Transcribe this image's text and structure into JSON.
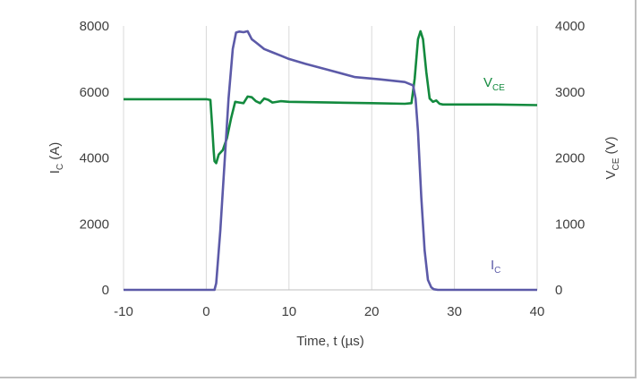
{
  "chart_data": {
    "type": "line",
    "xlabel": "Time, t (µs)",
    "ylabel_left": {
      "main": "I",
      "sub": "C",
      "unit": " (A)"
    },
    "ylabel_right": {
      "main": "V",
      "sub": "CE",
      "unit": " (V)"
    },
    "xlim": [
      -10,
      40
    ],
    "ylim_left": [
      0,
      8000
    ],
    "ylim_right": [
      0,
      4000
    ],
    "x_ticks": [
      "-10",
      "0",
      "10",
      "20",
      "30",
      "40"
    ],
    "y_left_ticks": [
      "0",
      "2000",
      "4000",
      "6000",
      "8000"
    ],
    "y_right_ticks": [
      "0",
      "1000",
      "2000",
      "3000",
      "4000"
    ],
    "grid": "vertical",
    "series": [
      {
        "name": "V",
        "label_sub": "CE",
        "axis": "right",
        "color": "#138a3e",
        "x": [
          -10,
          0,
          0.5,
          0.7,
          0.9,
          1.0,
          1.2,
          1.5,
          2.0,
          2.5,
          3.0,
          3.5,
          4.0,
          4.5,
          5.0,
          5.5,
          6.0,
          6.5,
          7.0,
          7.5,
          8.0,
          9.0,
          10,
          15,
          20,
          24,
          24.8,
          25.2,
          25.6,
          25.9,
          26.2,
          26.6,
          27.0,
          27.4,
          27.8,
          28.2,
          28.6,
          30,
          35,
          40
        ],
        "y": [
          2890,
          2890,
          2880,
          2500,
          2100,
          1950,
          1920,
          2050,
          2120,
          2300,
          2600,
          2850,
          2840,
          2830,
          2930,
          2920,
          2860,
          2830,
          2900,
          2880,
          2840,
          2860,
          2850,
          2840,
          2830,
          2820,
          2830,
          3200,
          3800,
          3920,
          3800,
          3300,
          2900,
          2850,
          2870,
          2820,
          2810,
          2810,
          2810,
          2800
        ]
      },
      {
        "name": "I",
        "label_sub": "C",
        "axis": "left",
        "color": "#5c5aa8",
        "x": [
          -10,
          0,
          1.0,
          1.2,
          1.7,
          2.2,
          2.7,
          3.2,
          3.6,
          4.0,
          4.5,
          5.0,
          5.5,
          6.0,
          7.0,
          8.0,
          9.0,
          10,
          12,
          15,
          18,
          21,
          24,
          25,
          25.3,
          25.6,
          26.0,
          26.4,
          26.8,
          27.2,
          27.5,
          28,
          30,
          35,
          40
        ],
        "y": [
          0,
          0,
          0,
          200,
          1800,
          3800,
          5800,
          7300,
          7800,
          7830,
          7810,
          7840,
          7600,
          7500,
          7300,
          7200,
          7100,
          7000,
          6850,
          6650,
          6450,
          6380,
          6300,
          6200,
          5800,
          4800,
          2800,
          1200,
          300,
          80,
          20,
          0,
          0,
          0,
          0
        ]
      }
    ]
  }
}
